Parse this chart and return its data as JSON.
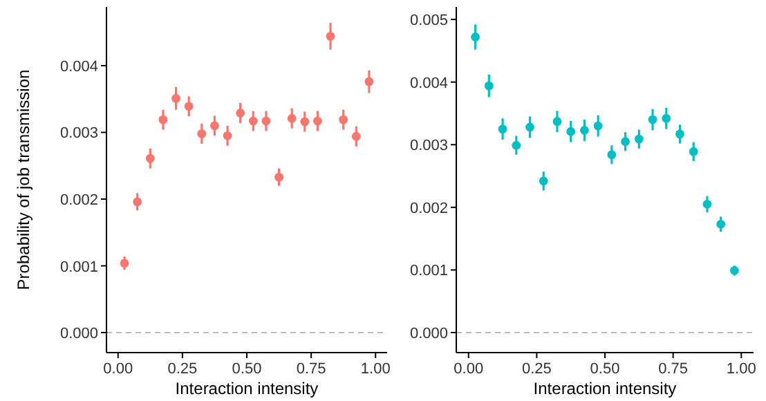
{
  "chart_data": [
    {
      "type": "scatter",
      "xlabel": "Interaction intensity",
      "ylabel": "Probability of job transmission",
      "x": [
        0.025,
        0.075,
        0.125,
        0.175,
        0.225,
        0.275,
        0.325,
        0.375,
        0.425,
        0.475,
        0.525,
        0.575,
        0.625,
        0.675,
        0.725,
        0.775,
        0.825,
        0.875,
        0.925,
        0.975
      ],
      "series": [
        {
          "color": "#f8766d",
          "values": [
            0.00104,
            0.00196,
            0.00261,
            0.00319,
            0.00351,
            0.00339,
            0.00298,
            0.0031,
            0.00295,
            0.00329,
            0.00317,
            0.00317,
            0.00233,
            0.00321,
            0.00316,
            0.00317,
            0.00444,
            0.00319,
            0.00294,
            0.00376
          ],
          "errors": [
            0.0001,
            0.00013,
            0.00015,
            0.00015,
            0.00017,
            0.00015,
            0.00015,
            0.00015,
            0.00015,
            0.00015,
            0.00015,
            0.00015,
            0.00013,
            0.00015,
            0.00015,
            0.00015,
            0.0002,
            0.00015,
            0.00015,
            0.00017
          ]
        }
      ],
      "marker": "circle",
      "xlim": [
        -0.045,
        1.045
      ],
      "ylim": [
        -0.0003,
        0.00488
      ],
      "xticks": [
        {
          "value": 0,
          "label": "0.00"
        },
        {
          "value": 0.25,
          "label": "0.25"
        },
        {
          "value": 0.5,
          "label": "0.50"
        },
        {
          "value": 0.75,
          "label": "0.75"
        },
        {
          "value": 1,
          "label": "1.00"
        }
      ],
      "yticks": [
        {
          "value": 0,
          "label": "0.000"
        },
        {
          "value": 0.001,
          "label": "0.001"
        },
        {
          "value": 0.002,
          "label": "0.002"
        },
        {
          "value": 0.003,
          "label": "0.003"
        },
        {
          "value": 0.004,
          "label": "0.004"
        }
      ],
      "ref_lines": [
        {
          "axis": "y",
          "value": 0,
          "color": "#bbbbbb",
          "line_style": "dashed"
        }
      ]
    },
    {
      "type": "scatter",
      "xlabel": "Interaction intensity",
      "x": [
        0.025,
        0.075,
        0.125,
        0.175,
        0.225,
        0.275,
        0.325,
        0.375,
        0.425,
        0.475,
        0.525,
        0.575,
        0.625,
        0.675,
        0.725,
        0.775,
        0.825,
        0.875,
        0.925,
        0.975
      ],
      "series": [
        {
          "color": "#00bfc4",
          "values": [
            0.00472,
            0.00394,
            0.00325,
            0.00299,
            0.00328,
            0.00242,
            0.00337,
            0.00321,
            0.00323,
            0.0033,
            0.00284,
            0.00305,
            0.00309,
            0.0034,
            0.00342,
            0.00317,
            0.00289,
            0.00205,
            0.00173,
            0.00099
          ],
          "errors": [
            0.0002,
            0.00018,
            0.00017,
            0.00015,
            0.00017,
            0.00015,
            0.00017,
            0.00017,
            0.00017,
            0.00017,
            0.00015,
            0.00015,
            0.00015,
            0.00017,
            0.00017,
            0.00015,
            0.00015,
            0.00013,
            0.00012,
            8e-05
          ]
        }
      ],
      "marker": "circle",
      "xlim": [
        -0.045,
        1.045
      ],
      "ylim": [
        -0.00032,
        0.0052
      ],
      "xticks": [
        {
          "value": 0,
          "label": "0.00"
        },
        {
          "value": 0.25,
          "label": "0.25"
        },
        {
          "value": 0.5,
          "label": "0.50"
        },
        {
          "value": 0.75,
          "label": "0.75"
        },
        {
          "value": 1,
          "label": "1.00"
        }
      ],
      "yticks": [
        {
          "value": 0,
          "label": "0.000"
        },
        {
          "value": 0.001,
          "label": "0.001"
        },
        {
          "value": 0.002,
          "label": "0.002"
        },
        {
          "value": 0.003,
          "label": "0.003"
        },
        {
          "value": 0.004,
          "label": "0.004"
        },
        {
          "value": 0.005,
          "label": "0.005"
        }
      ],
      "ref_lines": [
        {
          "axis": "y",
          "value": 0,
          "color": "#bbbbbb",
          "line_style": "dashed"
        }
      ]
    }
  ]
}
